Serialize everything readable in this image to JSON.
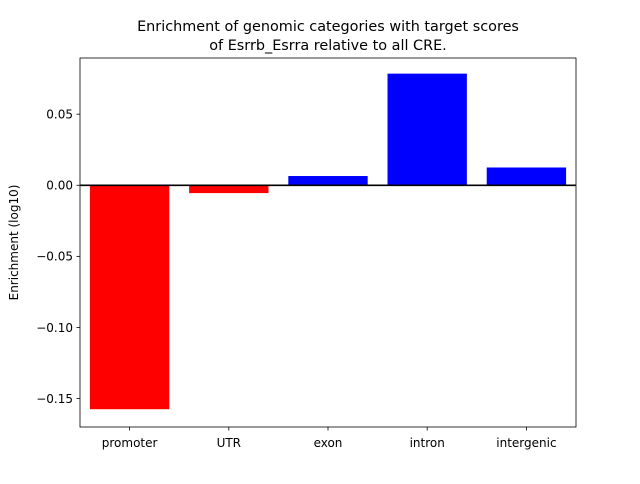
{
  "chart_data": {
    "type": "bar",
    "title_lines": [
      "Enrichment of genomic categories with target scores",
      "of Esrrb_Esrra relative to all CRE."
    ],
    "xlabel": "",
    "ylabel": "Enrichment (log10)",
    "categories": [
      "promoter",
      "UTR",
      "exon",
      "intron",
      "intergenic"
    ],
    "values": [
      -0.1575,
      -0.0055,
      0.0065,
      0.0785,
      0.0125
    ],
    "colors": [
      "#ff0000",
      "#ff0000",
      "#0000ff",
      "#0000ff",
      "#0000ff"
    ],
    "ylim": [
      -0.17,
      0.0895
    ],
    "yticks": [
      -0.15,
      -0.1,
      -0.05,
      0.0,
      0.05
    ],
    "ytick_labels": [
      "−0.15",
      "−0.10",
      "−0.05",
      "0.00",
      "0.05"
    ],
    "zero_line": true,
    "grid": false
  }
}
